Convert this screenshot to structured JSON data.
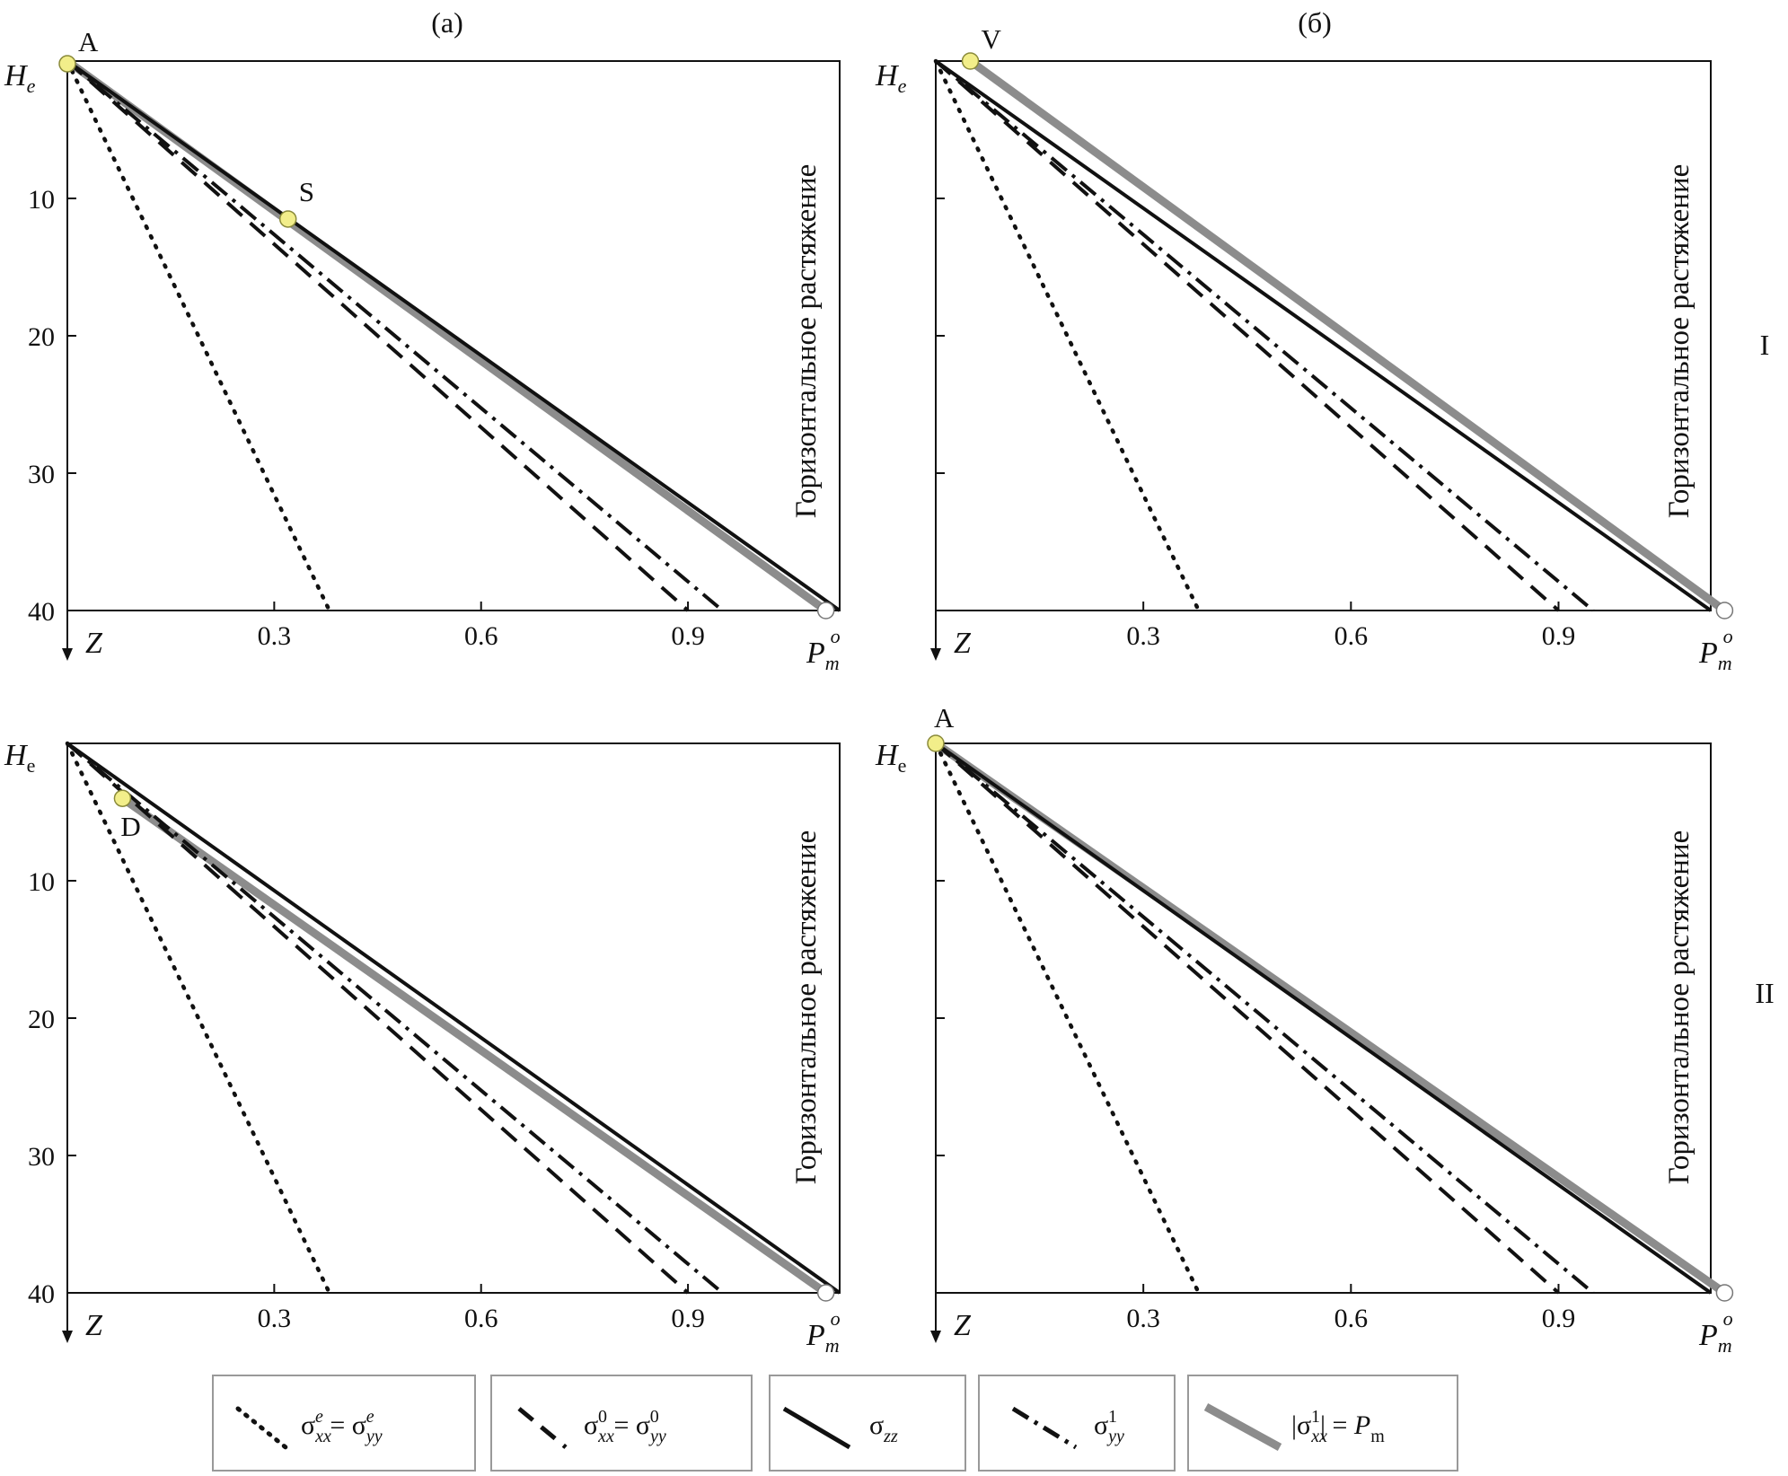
{
  "figure": {
    "panel_titles": [
      "(a)",
      "(б)"
    ],
    "row_labels": [
      "I",
      "II"
    ],
    "side_text": "Горизонтальное растяжение",
    "y_axis_symbol": "Z",
    "x_axis_symbol": "P",
    "x_axis_symbol_sup": "o",
    "x_axis_symbol_sub": "m",
    "top_symbol_row1": "H",
    "top_symbol_row1_sub": "e",
    "top_symbol_row2": "H",
    "top_symbol_row2_sub": "e",
    "x_ticks": [
      "0.3",
      "0.6",
      "0.9"
    ],
    "y_ticks": [
      "10",
      "20",
      "30",
      "40"
    ]
  },
  "colors": {
    "black": "#111111",
    "gray": "#8c8c8c",
    "marker_fill": "#f2ee8a",
    "marker_stroke": "#8a8a3a"
  },
  "legend": [
    {
      "style": "dotted",
      "label": "σxx^e = σyy^e"
    },
    {
      "style": "dashed",
      "label": "σxx^0 = σyy^0"
    },
    {
      "style": "solid",
      "label": "σzz"
    },
    {
      "style": "dashdot",
      "label": "σyy^1"
    },
    {
      "style": "gray",
      "label": "|σxx^1| = Pm"
    }
  ],
  "chart_data": [
    {
      "type": "line",
      "panel": "(a)",
      "row": "I",
      "xlim": [
        0,
        1.12
      ],
      "ylim": [
        0,
        40
      ],
      "series": [
        {
          "style": "dotted",
          "x": [
            0,
            0.38
          ],
          "y": [
            0,
            40
          ]
        },
        {
          "style": "dashed",
          "x": [
            0,
            0.9
          ],
          "y": [
            0,
            40
          ]
        },
        {
          "style": "dashdot",
          "x": [
            0,
            0.95
          ],
          "y": [
            0,
            40
          ]
        },
        {
          "style": "solid",
          "x": [
            0,
            1.12
          ],
          "y": [
            0,
            40
          ]
        },
        {
          "style": "gray",
          "x": [
            0,
            1.1
          ],
          "y": [
            0,
            40
          ]
        }
      ],
      "markers": [
        {
          "label": "A",
          "x": 0.0,
          "y": 0.2,
          "type": "filled"
        },
        {
          "label": "S",
          "x": 0.32,
          "y": 11.5,
          "type": "filled"
        },
        {
          "label": "",
          "x": 1.1,
          "y": 40,
          "type": "open"
        }
      ]
    },
    {
      "type": "line",
      "panel": "(б)",
      "row": "I",
      "xlim": [
        0,
        1.12
      ],
      "ylim": [
        0,
        40
      ],
      "series": [
        {
          "style": "dotted",
          "x": [
            0,
            0.38
          ],
          "y": [
            0,
            40
          ]
        },
        {
          "style": "dashed",
          "x": [
            0,
            0.9
          ],
          "y": [
            0,
            40
          ]
        },
        {
          "style": "dashdot",
          "x": [
            0,
            0.95
          ],
          "y": [
            0,
            40
          ]
        },
        {
          "style": "solid",
          "x": [
            0,
            1.12
          ],
          "y": [
            0,
            40
          ]
        },
        {
          "style": "gray",
          "x": [
            0.05,
            1.14
          ],
          "y": [
            0,
            40
          ]
        }
      ],
      "markers": [
        {
          "label": "V",
          "x": 0.05,
          "y": 0.0,
          "type": "filled"
        },
        {
          "label": "",
          "x": 1.14,
          "y": 40,
          "type": "open"
        }
      ]
    },
    {
      "type": "line",
      "panel": "(a)",
      "row": "II",
      "xlim": [
        0,
        1.12
      ],
      "ylim": [
        0,
        40
      ],
      "series": [
        {
          "style": "dotted",
          "x": [
            0,
            0.38
          ],
          "y": [
            0,
            40
          ]
        },
        {
          "style": "dashed",
          "x": [
            0,
            0.9
          ],
          "y": [
            0,
            40
          ]
        },
        {
          "style": "dashdot",
          "x": [
            0,
            0.95
          ],
          "y": [
            0,
            40
          ]
        },
        {
          "style": "solid",
          "x": [
            0,
            1.12
          ],
          "y": [
            0,
            40
          ]
        },
        {
          "style": "gray",
          "x": [
            0.08,
            1.1
          ],
          "y": [
            4,
            40
          ]
        }
      ],
      "markers": [
        {
          "label": "D",
          "x": 0.08,
          "y": 4,
          "type": "filled"
        },
        {
          "label": "",
          "x": 1.1,
          "y": 40,
          "type": "open"
        }
      ]
    },
    {
      "type": "line",
      "panel": "(б)",
      "row": "II",
      "xlim": [
        0,
        1.12
      ],
      "ylim": [
        0,
        40
      ],
      "series": [
        {
          "style": "dotted",
          "x": [
            0,
            0.38
          ],
          "y": [
            0,
            40
          ]
        },
        {
          "style": "dashed",
          "x": [
            0,
            0.9
          ],
          "y": [
            0,
            40
          ]
        },
        {
          "style": "dashdot",
          "x": [
            0,
            0.95
          ],
          "y": [
            0,
            40
          ]
        },
        {
          "style": "solid",
          "x": [
            0,
            1.12
          ],
          "y": [
            0,
            40
          ]
        },
        {
          "style": "gray",
          "x": [
            0,
            1.14
          ],
          "y": [
            0,
            40
          ]
        }
      ],
      "markers": [
        {
          "label": "A",
          "x": 0.0,
          "y": 0.0,
          "type": "filled"
        },
        {
          "label": "",
          "x": 1.14,
          "y": 40,
          "type": "open"
        }
      ]
    }
  ]
}
